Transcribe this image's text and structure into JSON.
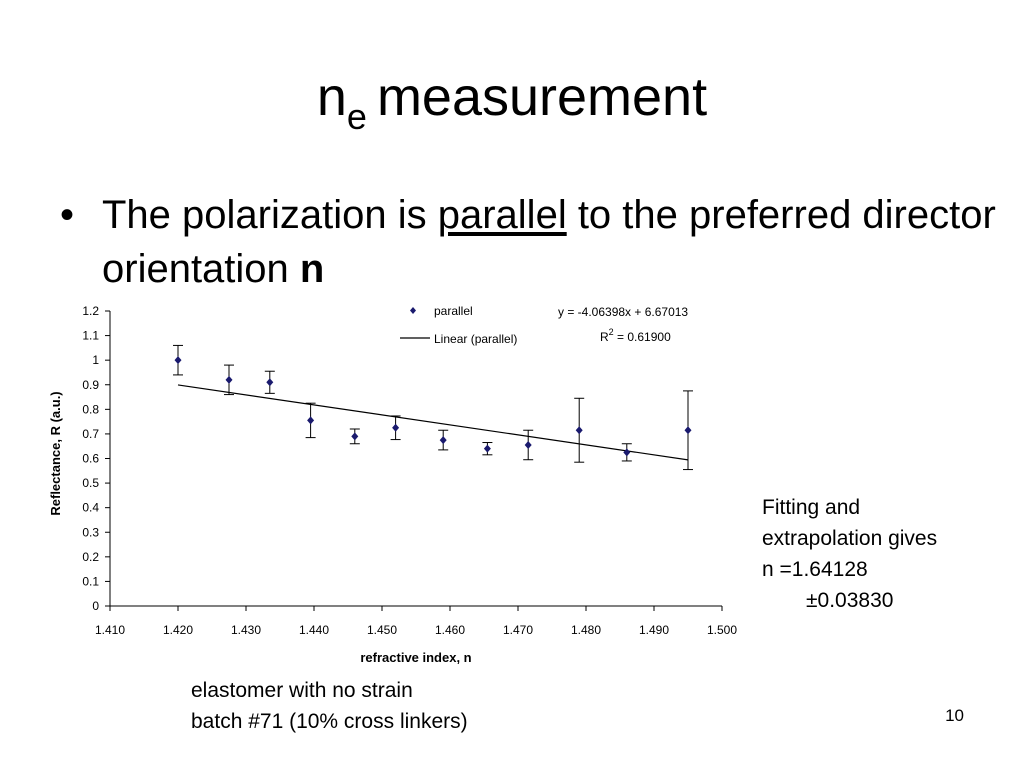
{
  "slide": {
    "title_main": "n",
    "title_sub": "e",
    "title_rest": "measurement",
    "bullet_symbol": "•",
    "bullet_part1": "The polarization is ",
    "bullet_underlined": "parallel",
    "bullet_part2": " to the preferred director orientation ",
    "bullet_bold": "n",
    "side_note_line1": "Fitting and",
    "side_note_line2": "extrapolation gives",
    "side_note_line3": "n =1.64128",
    "side_note_line4": "±0.03830",
    "caption_line1": "elastomer with no strain",
    "caption_line2": "batch #71 (10% cross linkers)",
    "page_number": "10"
  },
  "chart_data": {
    "type": "scatter",
    "xlabel": "refractive index, n",
    "ylabel": "Reflectance, R (a.u.)",
    "xlim": [
      1.41,
      1.5
    ],
    "ylim": [
      0,
      1.2
    ],
    "x_ticks": [
      "1.410",
      "1.420",
      "1.430",
      "1.440",
      "1.450",
      "1.460",
      "1.470",
      "1.480",
      "1.490",
      "1.500"
    ],
    "y_ticks": [
      "0",
      "0.1",
      "0.2",
      "0.3",
      "0.4",
      "0.5",
      "0.6",
      "0.7",
      "0.8",
      "0.9",
      "1",
      "1.1",
      "1.2"
    ],
    "grid": false,
    "legend_position": "top-right",
    "series": [
      {
        "name": "parallel",
        "color": "#1a1a6e",
        "marker": "diamond",
        "points": [
          {
            "x": 1.42,
            "y": 1.0,
            "err": 0.06
          },
          {
            "x": 1.4275,
            "y": 0.92,
            "err": 0.06
          },
          {
            "x": 1.4335,
            "y": 0.91,
            "err": 0.045
          },
          {
            "x": 1.4395,
            "y": 0.755,
            "err": 0.07
          },
          {
            "x": 1.446,
            "y": 0.69,
            "err": 0.03
          },
          {
            "x": 1.452,
            "y": 0.725,
            "err": 0.048
          },
          {
            "x": 1.459,
            "y": 0.675,
            "err": 0.04
          },
          {
            "x": 1.4655,
            "y": 0.64,
            "err": 0.025
          },
          {
            "x": 1.4715,
            "y": 0.655,
            "err": 0.06
          },
          {
            "x": 1.479,
            "y": 0.715,
            "err": 0.13
          },
          {
            "x": 1.486,
            "y": 0.625,
            "err": 0.035
          },
          {
            "x": 1.495,
            "y": 0.715,
            "err": 0.16
          }
        ]
      }
    ],
    "trendline": {
      "name": "Linear (parallel)",
      "slope": -4.06398,
      "intercept": 6.67013,
      "x_range": [
        1.42,
        1.495
      ],
      "equation": "y = -4.06398x + 6.67013",
      "r2_label": "R",
      "r2_sup": "2",
      "r2_value": " = 0.61900"
    }
  }
}
